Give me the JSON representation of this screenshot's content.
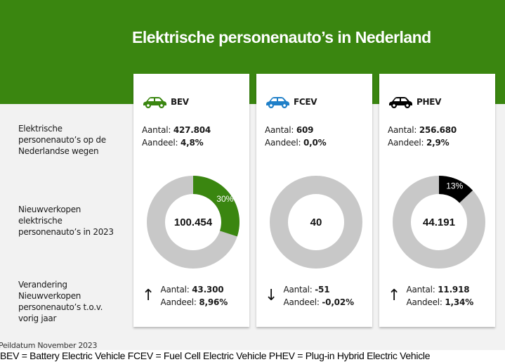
{
  "header": {
    "title": "Elektrische personenauto’s in Nederland",
    "color": "#3a8610"
  },
  "row_labels": [
    {
      "lines": [
        "Elektrische",
        "personenauto’s op de",
        "Nederlandse wegen"
      ]
    },
    {
      "lines": [
        "Nieuwverkopen",
        "elektrische",
        "personenauto’s in 2023"
      ]
    },
    {
      "lines": [
        "Verandering",
        "Nieuwverkopen",
        "personenauto’s t.o.v.",
        "vorig jaar"
      ]
    }
  ],
  "labels": {
    "aantal": "Aantal: ",
    "aandeel": "Aandeel: "
  },
  "cards": [
    {
      "type": "BEV",
      "icon": "car-icon",
      "color": "#3a8610",
      "aantal": "427.804",
      "aandeel": "4,8%",
      "new_sales": "100.454",
      "share_percent": 30,
      "share_label": "30%",
      "change_direction": "up",
      "change_arrow": "↑",
      "change_aantal": "43.300",
      "change_aandeel": "8,96%"
    },
    {
      "type": "FCEV",
      "icon": "car-icon",
      "color": "#1f7fc8",
      "aantal": "609",
      "aandeel": "0,0%",
      "new_sales": "40",
      "share_percent": 0,
      "share_label": "",
      "change_direction": "down",
      "change_arrow": "↓",
      "change_aantal": "-51",
      "change_aandeel": "-0,02%"
    },
    {
      "type": "PHEV",
      "icon": "car-icon",
      "color": "#000000",
      "aantal": "256.680",
      "aandeel": "2,9%",
      "new_sales": "44.191",
      "share_percent": 13,
      "share_label": "13%",
      "change_direction": "up",
      "change_arrow": "↑",
      "change_aantal": "11.918",
      "change_aandeel": "1,34%"
    }
  ],
  "donut_rest_color": "#c8c8c8",
  "footer": {
    "peildatum": "Peildatum November 2023",
    "legend": "BEV = Battery Electric Vehicle  FCEV = Fuel Cell Electric Vehicle  PHEV = Plug-in Hybrid Electric Vehicle"
  },
  "chart_data": {
    "type": "pie",
    "title": "Nieuwverkopen elektrische personenauto’s in 2023",
    "series": [
      {
        "name": "BEV",
        "total": 100454,
        "share_percent": 30
      },
      {
        "name": "FCEV",
        "total": 40,
        "share_percent": 0
      },
      {
        "name": "PHEV",
        "total": 44191,
        "share_percent": 13
      }
    ]
  }
}
